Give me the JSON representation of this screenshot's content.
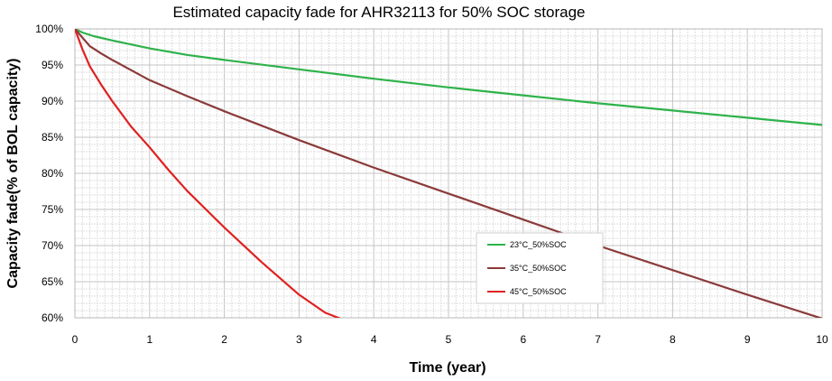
{
  "chart_data": {
    "type": "line",
    "title": "Estimated capacity fade for AHR32113 for 50% SOC storage",
    "xlabel": "Time (year)",
    "ylabel": "Capacity fade(% of BOL capacity)",
    "xlim": [
      0,
      10
    ],
    "ylim": [
      60,
      100
    ],
    "xticks": [
      "0",
      "1",
      "2",
      "3",
      "4",
      "5",
      "6",
      "7",
      "8",
      "9",
      "10"
    ],
    "yticks": [
      "60%",
      "65%",
      "70%",
      "75%",
      "80%",
      "85%",
      "90%",
      "95%",
      "100%"
    ],
    "grid": true,
    "legend_position": "lower-center-right",
    "series": [
      {
        "name": "23°C_50%SOC",
        "color": "#2eb24a",
        "x": [
          0,
          0.1,
          0.25,
          0.5,
          1,
          1.5,
          2,
          3,
          4,
          5,
          6,
          7,
          8,
          9,
          10
        ],
        "y": [
          100,
          99.5,
          99.0,
          98.4,
          97.3,
          96.4,
          95.7,
          94.4,
          93.1,
          91.9,
          90.8,
          89.7,
          88.7,
          87.7,
          86.7
        ]
      },
      {
        "name": "35°C_50%SOC",
        "color": "#8b3a3a",
        "x": [
          0,
          0.1,
          0.2,
          0.35,
          0.5,
          1,
          1.5,
          2,
          3,
          4,
          5,
          6,
          7,
          8,
          9,
          10
        ],
        "y": [
          100,
          98.8,
          97.6,
          96.6,
          95.7,
          92.9,
          90.7,
          88.6,
          84.6,
          80.8,
          77.2,
          73.6,
          70.0,
          66.6,
          63.2,
          59.9
        ]
      },
      {
        "name": "45°C_50%SOC",
        "color": "#e02020",
        "x": [
          0,
          0.1,
          0.2,
          0.35,
          0.5,
          0.75,
          1,
          1.25,
          1.5,
          2,
          2.5,
          3,
          3.35,
          3.6
        ],
        "y": [
          100,
          97.2,
          94.8,
          92.3,
          90.0,
          86.5,
          83.6,
          80.5,
          77.6,
          72.5,
          67.7,
          63.2,
          60.7,
          59.7
        ]
      }
    ]
  }
}
